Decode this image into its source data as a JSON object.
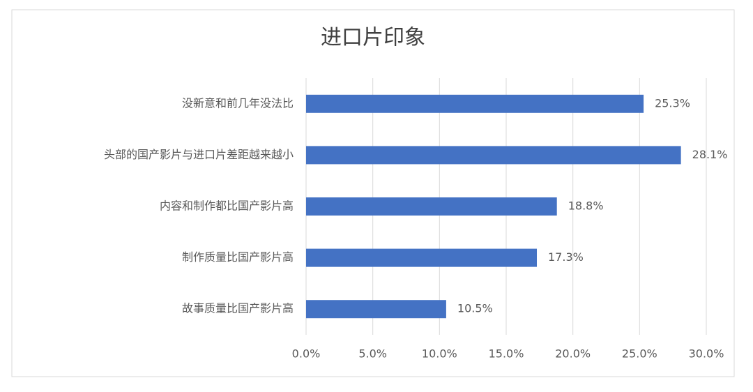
{
  "chart_data": {
    "type": "bar",
    "orientation": "horizontal",
    "title": "进口片印象",
    "categories": [
      "没新意和前几年没法比",
      "头部的国产影片与进口片差距越来越小",
      "内容和制作都比国产影片高",
      "制作质量比国产影片高",
      "故事质量比国产影片高"
    ],
    "values": [
      25.3,
      28.1,
      18.8,
      17.3,
      10.5
    ],
    "value_labels": [
      "25.3%",
      "28.1%",
      "18.8%",
      "17.3%",
      "10.5%"
    ],
    "color": "#4472c4",
    "xlim": [
      0,
      30
    ],
    "xticks": [
      {
        "value": 0,
        "label": "0.0%"
      },
      {
        "value": 5,
        "label": "5.0%"
      },
      {
        "value": 10,
        "label": "10.0%"
      },
      {
        "value": 15,
        "label": "15.0%"
      },
      {
        "value": 20,
        "label": "20.0%"
      },
      {
        "value": 25,
        "label": "25.0%"
      },
      {
        "value": 30,
        "label": "30.0%"
      }
    ],
    "grid": true
  }
}
